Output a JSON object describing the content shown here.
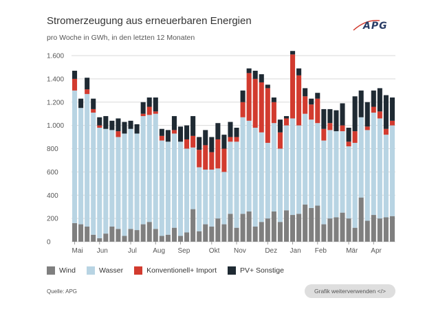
{
  "header": {
    "title": "Stromerzeugung aus erneuerbaren Energien",
    "subtitle": "pro Woche in GWh, in den letzten 12 Monaten",
    "logo_text": "APG"
  },
  "footer": {
    "source": "Quelle: APG",
    "reuse_label": "Grafik weiterverwenden </>"
  },
  "colors": {
    "wind": "#7f7f7f",
    "wasser": "#b8d4e3",
    "konv": "#d23b2f",
    "pv": "#1f2a33",
    "grid": "#d9d9d9"
  },
  "chart_data": {
    "type": "bar",
    "stacked": true,
    "title": "Stromerzeugung aus erneuerbaren Energien",
    "subtitle": "pro Woche in GWh, in den letzten 12 Monaten",
    "ylim": [
      0,
      1600
    ],
    "yticks": [
      0,
      200,
      400,
      600,
      800,
      1000,
      1200,
      1400,
      1600
    ],
    "ytick_labels": [
      "0",
      "200",
      "400",
      "600",
      "800",
      "1.000",
      "1.200",
      "1.400",
      "1.600"
    ],
    "month_labels": [
      {
        "label": "Mai",
        "week": 0
      },
      {
        "label": "Jun",
        "week": 4
      },
      {
        "label": "Jul",
        "week": 9
      },
      {
        "label": "Aug",
        "week": 13
      },
      {
        "label": "Sep",
        "week": 17
      },
      {
        "label": "Okt",
        "week": 22
      },
      {
        "label": "Nov",
        "week": 26
      },
      {
        "label": "Dez",
        "week": 31
      },
      {
        "label": "Jan",
        "week": 35
      },
      {
        "label": "Feb",
        "week": 39
      },
      {
        "label": "Mär",
        "week": 44
      },
      {
        "label": "Apr",
        "week": 48
      }
    ],
    "legend": [
      "Wind",
      "Wasser",
      "Konventionell+ Import",
      "PV+ Sonstige"
    ],
    "series": [
      {
        "name": "Wind",
        "key": "wind",
        "values": [
          160,
          150,
          130,
          60,
          30,
          70,
          130,
          110,
          50,
          110,
          100,
          150,
          170,
          110,
          50,
          60,
          120,
          50,
          80,
          280,
          90,
          150,
          130,
          200,
          150,
          240,
          120,
          240,
          260,
          130,
          170,
          200,
          260,
          170,
          270,
          230,
          240,
          320,
          290,
          310,
          150,
          200,
          210,
          250,
          200,
          120,
          380,
          180,
          230,
          200,
          210,
          220
        ]
      },
      {
        "name": "Wasser",
        "key": "wasser",
        "values": [
          1140,
          1000,
          1140,
          1050,
          950,
          900,
          830,
          790,
          880,
          860,
          830,
          930,
          920,
          990,
          820,
          800,
          810,
          810,
          720,
          530,
          550,
          470,
          490,
          430,
          450,
          620,
          740,
          830,
          780,
          850,
          770,
          650,
          760,
          630,
          730,
          830,
          760,
          780,
          760,
          710,
          720,
          760,
          740,
          700,
          620,
          730,
          690,
          780,
          880,
          860,
          710,
          780
        ]
      },
      {
        "name": "Konventionell+ Import",
        "key": "konv",
        "values": [
          100,
          0,
          40,
          30,
          20,
          0,
          0,
          50,
          0,
          0,
          0,
          20,
          70,
          20,
          40,
          0,
          30,
          0,
          80,
          100,
          150,
          210,
          150,
          250,
          200,
          40,
          40,
          130,
          410,
          420,
          430,
          470,
          180,
          140,
          60,
          550,
          430,
          150,
          130,
          210,
          100,
          60,
          0,
          50,
          40,
          100,
          0,
          30,
          50,
          60,
          50,
          40
        ]
      },
      {
        "name": "PV+ Sonstige",
        "key": "pv",
        "values": [
          70,
          80,
          100,
          90,
          70,
          110,
          80,
          110,
          100,
          70,
          80,
          100,
          80,
          120,
          60,
          100,
          120,
          130,
          120,
          170,
          110,
          130,
          130,
          140,
          120,
          130,
          80,
          100,
          40,
          70,
          70,
          30,
          40,
          110,
          20,
          30,
          60,
          70,
          50,
          50,
          170,
          120,
          180,
          190,
          120,
          300,
          230,
          210,
          140,
          200,
          290,
          200
        ]
      }
    ]
  }
}
